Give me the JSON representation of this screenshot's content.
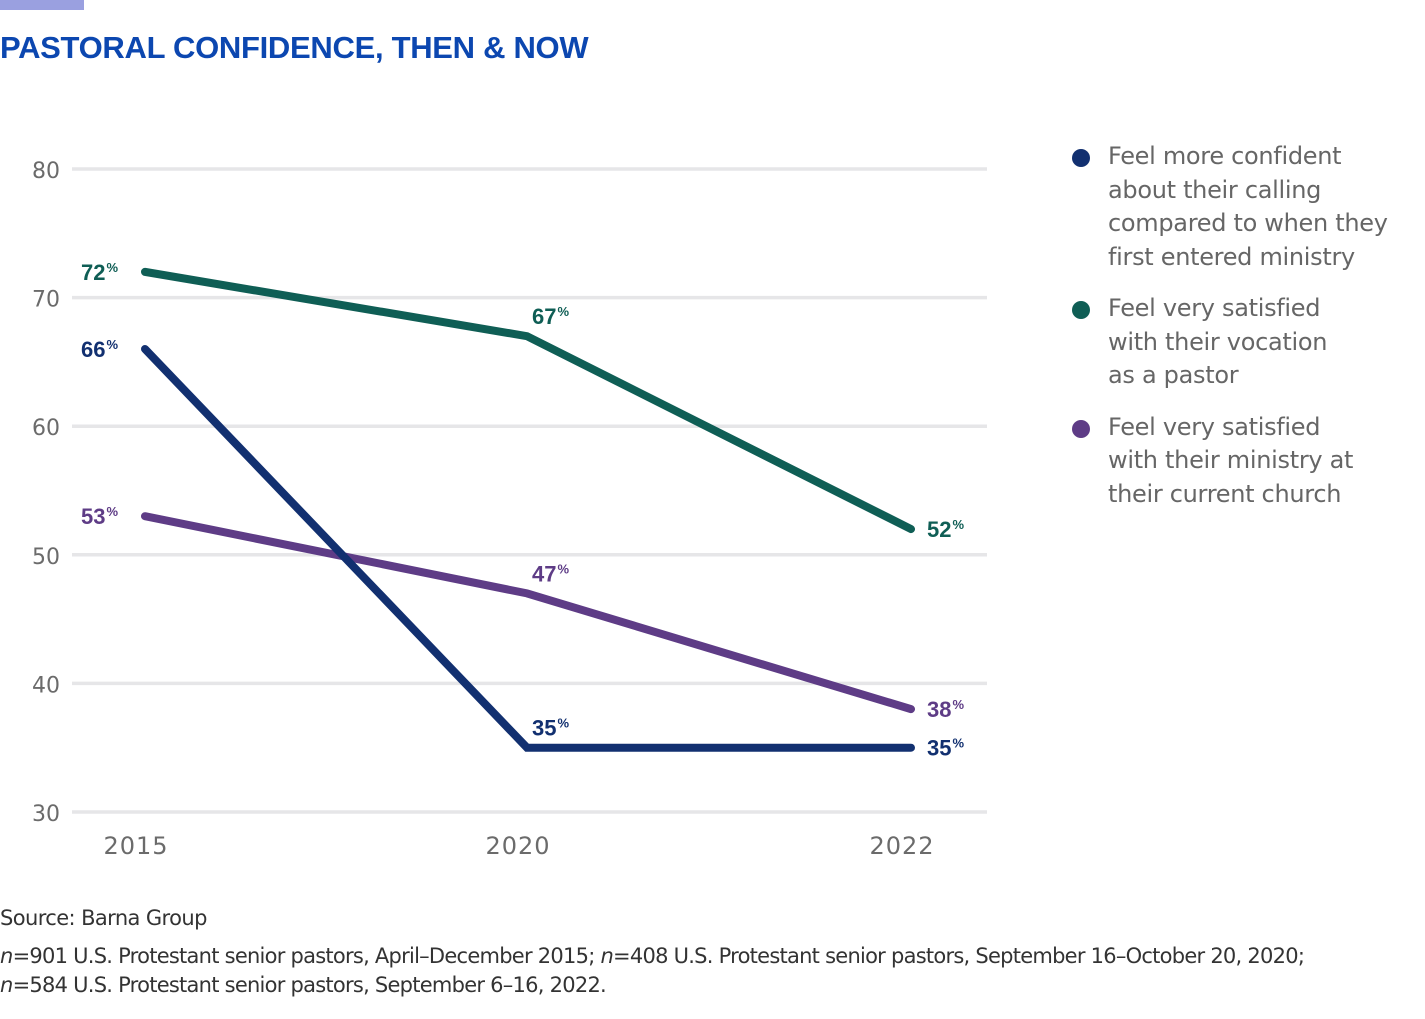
{
  "title": "PASTORAL CONFIDENCE, THEN & NOW",
  "colors": {
    "title": "#0c47b0",
    "accent_bar": "#9aa0e0",
    "grid": "#e6e6e8",
    "axis_text": "#6b6b6b"
  },
  "legend": [
    {
      "label": "Feel more confident\nabout their calling\ncompared to when they\nfirst entered ministry",
      "color": "#123070",
      "icon": "circle-icon"
    },
    {
      "label": "Feel very satisfied\nwith their vocation\nas a pastor",
      "color": "#0f5e55",
      "icon": "circle-icon"
    },
    {
      "label": "Feel very satisfied\nwith their ministry at\ntheir current church",
      "color": "#5e3c86",
      "icon": "circle-icon"
    }
  ],
  "footer": {
    "source": "Source: Barna Group",
    "notes": [
      [
        {
          "italic": true,
          "text": "n"
        },
        {
          "italic": false,
          "text": "=901 U.S. Protestant senior pastors, April–December 2015; "
        },
        {
          "italic": true,
          "text": "n"
        },
        {
          "italic": false,
          "text": "=408 U.S. Protestant senior pastors, September 16–October 20, 2020;"
        }
      ],
      [
        {
          "italic": true,
          "text": "n"
        },
        {
          "italic": false,
          "text": "=584 U.S. Protestant senior pastors, September 6–16, 2022."
        }
      ]
    ]
  },
  "chart_data": {
    "type": "line",
    "title": "PASTORAL CONFIDENCE, THEN & NOW",
    "xlabel": "",
    "ylabel": "",
    "categories": [
      "2015",
      "2020",
      "2022"
    ],
    "ylim": [
      30,
      80
    ],
    "yticks": [
      30,
      40,
      50,
      60,
      70,
      80
    ],
    "grid": true,
    "legend_position": "right",
    "value_suffix": "%",
    "series": [
      {
        "name": "Feel more confident about their calling compared to when they first entered ministry",
        "color": "#123070",
        "values": [
          66,
          35,
          35
        ]
      },
      {
        "name": "Feel very satisfied with their vocation as a pastor",
        "color": "#0f5e55",
        "values": [
          72,
          67,
          52
        ]
      },
      {
        "name": "Feel very satisfied with their ministry at their current church",
        "color": "#5e3c86",
        "values": [
          53,
          47,
          38
        ]
      }
    ]
  }
}
